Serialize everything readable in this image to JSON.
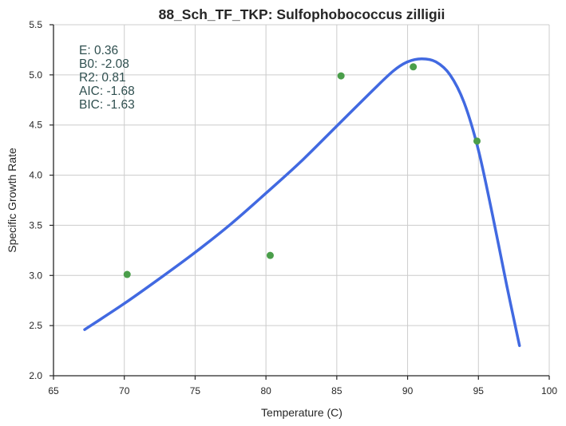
{
  "chart_data": {
    "type": "scatter",
    "title": "88_Sch_TF_TKP: Sulfophobococcus zilligii",
    "xlabel": "Temperature (C)",
    "ylabel": "Specific Growth Rate",
    "xlim": [
      65,
      100
    ],
    "ylim": [
      2.0,
      5.5
    ],
    "xticks": [
      "65",
      "70",
      "75",
      "80",
      "85",
      "90",
      "95",
      "100"
    ],
    "yticks": [
      "2.0",
      "2.5",
      "3.0",
      "3.5",
      "4.0",
      "4.5",
      "5.0",
      "5.5"
    ],
    "grid": true,
    "points": {
      "color": "#4a9e4a",
      "x": [
        70.2,
        80.3,
        85.3,
        90.4,
        94.9
      ],
      "y": [
        3.01,
        3.2,
        4.99,
        5.08,
        4.34
      ]
    },
    "fit": {
      "color": "#4169e1",
      "x": [
        67.2,
        70,
        72.5,
        75,
        77.5,
        80,
        82.5,
        85,
        87.5,
        89,
        90,
        91,
        92,
        93,
        94,
        95,
        96,
        97,
        97.9
      ],
      "y": [
        2.46,
        2.72,
        2.97,
        3.23,
        3.51,
        3.82,
        4.14,
        4.49,
        4.84,
        5.04,
        5.13,
        5.16,
        5.13,
        5.0,
        4.72,
        4.25,
        3.6,
        2.9,
        2.3
      ]
    },
    "annotation": {
      "position": "top-left",
      "lines": [
        "E:  0.36",
        "B0:  -2.08",
        "R2:  0.81",
        "AIC: -1.68",
        "BIC: -1.63"
      ]
    }
  }
}
